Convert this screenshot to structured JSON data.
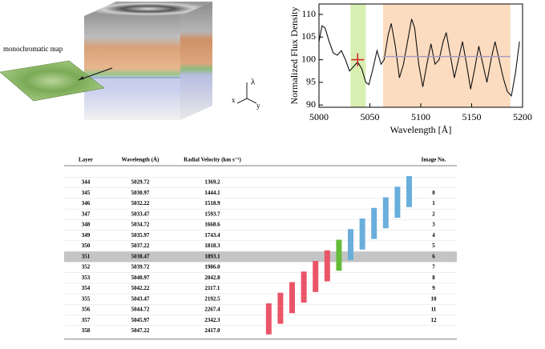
{
  "diagram": {
    "map_label": "monochromatic map",
    "axes": {
      "lambda": "λ",
      "x": "x",
      "y": "y"
    }
  },
  "chart_data": {
    "type": "line",
    "xlabel": "Wavelength [Å]",
    "ylabel": "Normalized Flux Density",
    "xlim": [
      5000,
      5200
    ],
    "ylim": [
      89.5,
      112.3
    ],
    "xticks": [
      5000,
      5050,
      5100,
      5150,
      5200
    ],
    "yticks": [
      90,
      95,
      100,
      105,
      110
    ],
    "regions": [
      {
        "x": [
          5031,
          5046
        ],
        "color": "#d8efb2"
      },
      {
        "x": [
          5063,
          5188
        ],
        "color": "#fcdcc0"
      }
    ],
    "series": [
      {
        "color": "#111111",
        "x": [
          5000,
          5003,
          5006,
          5010,
          5014,
          5018,
          5022,
          5026,
          5030,
          5034,
          5038,
          5042,
          5046,
          5049,
          5053,
          5057,
          5061,
          5064,
          5068,
          5071,
          5075,
          5079,
          5083,
          5087,
          5091,
          5094,
          5098,
          5102,
          5106,
          5110,
          5114,
          5118,
          5122,
          5125,
          5129,
          5133,
          5137,
          5141,
          5145,
          5149,
          5153,
          5157,
          5161,
          5165,
          5169,
          5173,
          5177,
          5181,
          5185,
          5189,
          5193,
          5197
        ],
        "values": [
          104,
          107.5,
          107,
          104,
          101.5,
          101,
          102,
          100,
          97.5,
          98.5,
          99.5,
          98,
          95,
          94.5,
          98,
          102,
          99,
          100,
          105.5,
          108,
          103,
          96,
          99,
          104,
          109,
          107,
          99,
          94,
          99,
          103.5,
          99,
          100,
          104,
          106,
          101,
          96,
          100,
          104,
          99,
          93.5,
          98,
          103,
          99,
          95,
          100,
          104,
          100,
          96,
          93,
          92,
          97,
          104
        ]
      },
      {
        "color": "#a99ac4",
        "x": [
          5063,
          5188
        ],
        "values": [
          100.7,
          100.7
        ]
      }
    ],
    "marker": {
      "x": 5038,
      "y": 100,
      "color": "#d62728"
    }
  },
  "table": {
    "columns": [
      "Layer",
      "Wavelength (Å)",
      "Radial Velocity (km s⁻¹)",
      "Image No."
    ],
    "rows": [
      [
        "344",
        "5029.72",
        "1369.2",
        null
      ],
      [
        "345",
        "5030.97",
        "1444.1",
        "0"
      ],
      [
        "346",
        "5032.22",
        "1518.9",
        "1"
      ],
      [
        "347",
        "5033.47",
        "1593.7",
        "2"
      ],
      [
        "348",
        "5034.72",
        "1668.6",
        "3"
      ],
      [
        "349",
        "5035.97",
        "1743.4",
        "4"
      ],
      [
        "350",
        "5037.22",
        "1818.3",
        "5"
      ],
      [
        "351",
        "5038.47",
        "1893.1",
        "6"
      ],
      [
        "352",
        "5039.72",
        "1986.0",
        "7"
      ],
      [
        "353",
        "5040.97",
        "2042.8",
        "8"
      ],
      [
        "354",
        "5042.22",
        "2117.1",
        "9"
      ],
      [
        "355",
        "5043.47",
        "2192.5",
        "10"
      ],
      [
        "356",
        "5044.72",
        "2267.4",
        "11"
      ],
      [
        "357",
        "5045.97",
        "2342.3",
        "12"
      ],
      [
        "358",
        "5047.22",
        "2417.0",
        null
      ]
    ],
    "highlight_row": 7,
    "bar_colors": [
      "#6aaedb",
      "#66bb3a",
      "#ea5568"
    ]
  }
}
